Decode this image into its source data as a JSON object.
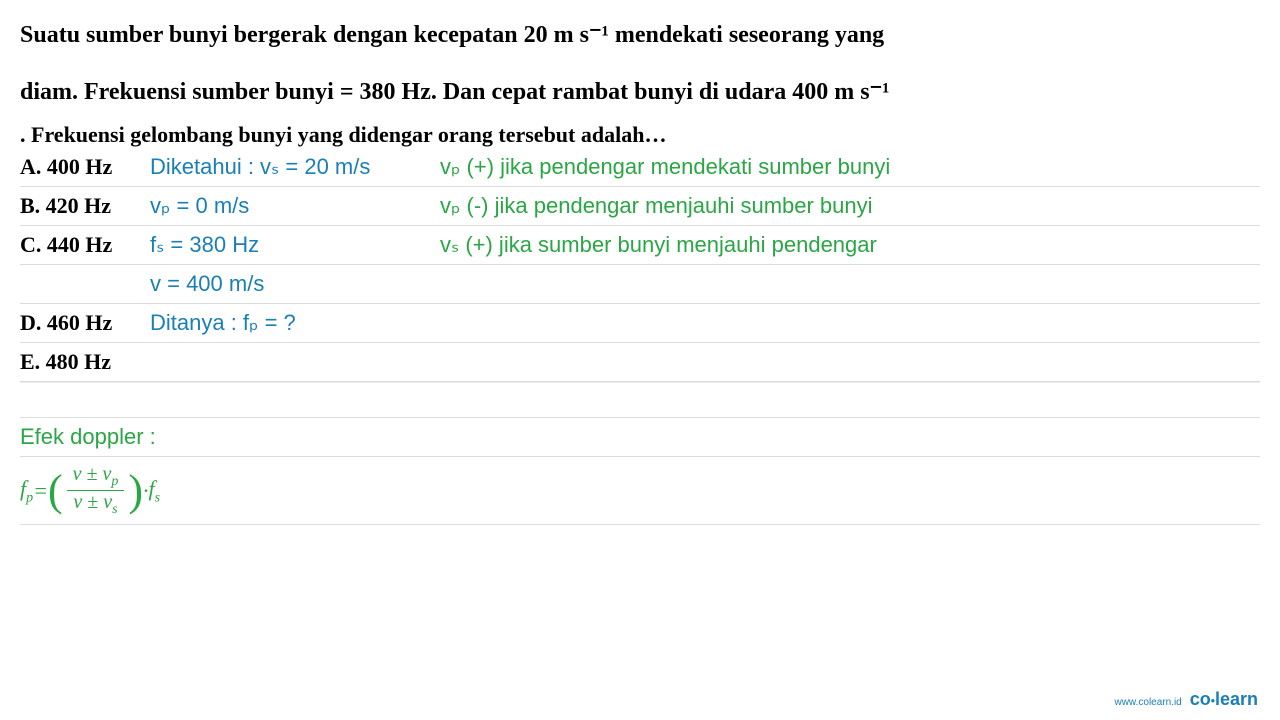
{
  "question": {
    "line1": "Suatu sumber bunyi bergerak dengan kecepatan 20 m s⁻¹ mendekati seseorang yang",
    "line2": "diam. Frekuensi sumber bunyi = 380 Hz. Dan cepat rambat bunyi di udara 400 m s⁻¹",
    "sub": ". Frekuensi gelombang bunyi yang didengar orang tersebut adalah…"
  },
  "options": {
    "a": "A. 400 Hz",
    "b": "B. 420 Hz",
    "c": "C. 440 Hz",
    "d": "D. 460 Hz",
    "e": "E. 480 Hz"
  },
  "given": {
    "header": "Diketahui : vₛ = 20 m/s",
    "vp": "vₚ = 0 m/s",
    "fs": "fₛ = 380 Hz",
    "v": "v = 400 m/s",
    "asked": "Ditanya : fₚ = ?"
  },
  "rules": {
    "r1": "vₚ (+) jika pendengar mendekati sumber bunyi",
    "r2": "vₚ (-) jika pendengar menjauhi sumber bunyi",
    "r3": "vₛ (+) jika sumber bunyi menjauhi pendengar"
  },
  "doppler": {
    "header": "Efek doppler :",
    "fp": "f",
    "fp_sub": "p",
    "eq": " = ",
    "num": "v ± v",
    "num_sub": "p",
    "den": "v ± v",
    "den_sub": "s",
    "dot": " · ",
    "fs": "f",
    "fs_sub": "s"
  },
  "footer": {
    "url": "www.colearn.id",
    "brand_co": "co",
    "brand_learn": "learn"
  },
  "colors": {
    "black": "#000000",
    "teal": "#1a7fb5",
    "green": "#2aa645",
    "line": "#dddddd",
    "bg": "#ffffff"
  },
  "typography": {
    "question_fontsize": 24,
    "option_fontsize": 22,
    "handwriting_fontsize": 22,
    "handwriting_family": "Comic Sans MS",
    "formula_family": "Times New Roman"
  }
}
